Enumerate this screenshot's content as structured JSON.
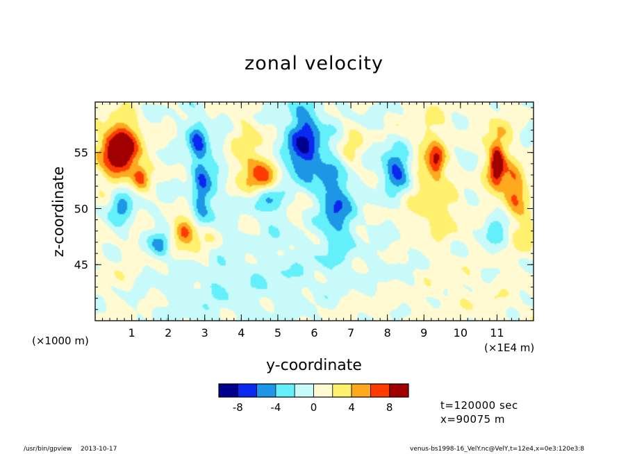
{
  "chart": {
    "title": "zonal velocity",
    "xlabel": "y-coordinate",
    "ylabel": "z-coordinate",
    "x_unit_left": "(×1000 m)",
    "x_unit_right": "(×1E4 m)"
  },
  "info": {
    "time": "t=120000 sec",
    "position": "x=90075 m"
  },
  "footer": {
    "program": "/usr/bin/gpview",
    "date": "2013-10-17",
    "source": "venus-bs1998-16_VelY.nc@VelY,t=12e4,x=0e3:120e3:8"
  },
  "colorbar": {
    "colors": [
      "#00008f",
      "#0a28f0",
      "#1e96e6",
      "#64f0fa",
      "#c8fafa",
      "#fffad2",
      "#fff06e",
      "#ffaa1e",
      "#ff3c00",
      "#a00000"
    ],
    "tick_labels": [
      "-8",
      "-4",
      "0",
      "4",
      "8"
    ],
    "tick_values": [
      -8,
      -4,
      0,
      4,
      8
    ],
    "levels": [
      -10,
      -8,
      -6,
      -4,
      -2,
      0,
      2,
      4,
      6,
      8,
      10
    ]
  },
  "chart_data": {
    "type": "heatmap",
    "title": "zonal velocity",
    "xlabel": "y-coordinate",
    "ylabel": "z-coordinate",
    "x_ticks": [
      1,
      2,
      3,
      4,
      5,
      6,
      7,
      8,
      9,
      10,
      11
    ],
    "x_tick_labels": [
      "1",
      "2",
      "3",
      "4",
      "5",
      "6",
      "7",
      "8",
      "9",
      "10",
      "11"
    ],
    "xlim": [
      0,
      12
    ],
    "y_ticks": [
      45,
      50,
      55
    ],
    "y_tick_labels": [
      "45",
      "50",
      "55"
    ],
    "ylim": [
      40,
      59.5
    ],
    "grid": false,
    "features": [
      {
        "x": 0.7,
        "z": 55.2,
        "value": 8,
        "sx": 0.35,
        "sz": 1.6
      },
      {
        "x": 0.65,
        "z": 54.8,
        "value": 4,
        "sx": 0.5,
        "sz": 2.5
      },
      {
        "x": 0.7,
        "z": 50.5,
        "value": -5,
        "sx": 0.25,
        "sz": 1.5
      },
      {
        "x": 1.25,
        "z": 52.8,
        "value": 5,
        "sx": 0.15,
        "sz": 0.7
      },
      {
        "x": 1.8,
        "z": 46.8,
        "value": -5,
        "sx": 0.2,
        "sz": 0.8
      },
      {
        "x": 2.45,
        "z": 48.0,
        "value": 6,
        "sx": 0.2,
        "sz": 0.7
      },
      {
        "x": 2.8,
        "z": 47.2,
        "value": 3,
        "sx": 0.45,
        "sz": 1.3
      },
      {
        "x": 2.8,
        "z": 56.0,
        "value": -6,
        "sx": 0.18,
        "sz": 1.5
      },
      {
        "x": 2.9,
        "z": 51.5,
        "value": -5,
        "sx": 0.18,
        "sz": 2.3
      },
      {
        "x": 3.35,
        "z": 51.0,
        "value": -2,
        "sx": 0.25,
        "sz": 3.5
      },
      {
        "x": 4.2,
        "z": 55.0,
        "value": 3,
        "sx": 0.35,
        "sz": 2.5
      },
      {
        "x": 4.6,
        "z": 52.8,
        "value": 6,
        "sx": 0.35,
        "sz": 1.2
      },
      {
        "x": 4.6,
        "z": 50.8,
        "value": -5,
        "sx": 0.25,
        "sz": 0.9
      },
      {
        "x": 5.1,
        "z": 51.5,
        "value": -2,
        "sx": 0.3,
        "sz": 3.5
      },
      {
        "x": 5.75,
        "z": 55.5,
        "value": -7,
        "sx": 0.3,
        "sz": 2.5
      },
      {
        "x": 5.75,
        "z": 53.5,
        "value": -2,
        "sx": 0.5,
        "sz": 4.0
      },
      {
        "x": 5.6,
        "z": 51.0,
        "value": 3,
        "sx": 0.4,
        "sz": 2.5
      },
      {
        "x": 6.6,
        "z": 50.5,
        "value": -6,
        "sx": 0.3,
        "sz": 2.8
      },
      {
        "x": 7.0,
        "z": 55.2,
        "value": 3,
        "sx": 0.25,
        "sz": 1.5
      },
      {
        "x": 8.25,
        "z": 53.5,
        "value": -7,
        "sx": 0.28,
        "sz": 1.4
      },
      {
        "x": 9.3,
        "z": 54.5,
        "value": 3,
        "sx": 0.55,
        "sz": 3.5
      },
      {
        "x": 9.35,
        "z": 54.2,
        "value": 6,
        "sx": 0.15,
        "sz": 1.0
      },
      {
        "x": 9.3,
        "z": 49.5,
        "value": 2,
        "sx": 0.5,
        "sz": 2.0
      },
      {
        "x": 10.0,
        "z": 54.5,
        "value": -2,
        "sx": 0.3,
        "sz": 2.0
      },
      {
        "x": 11.0,
        "z": 54.0,
        "value": 4,
        "sx": 0.35,
        "sz": 3.5
      },
      {
        "x": 11.0,
        "z": 54.0,
        "value": 7,
        "sx": 0.12,
        "sz": 1.2
      },
      {
        "x": 11.5,
        "z": 51.8,
        "value": 6,
        "sx": 0.2,
        "sz": 1.5
      },
      {
        "x": 10.95,
        "z": 48.5,
        "value": -4,
        "sx": 0.25,
        "sz": 1.5
      },
      {
        "x": 11.8,
        "z": 48.0,
        "value": 3,
        "sx": 0.25,
        "sz": 1.5
      },
      {
        "x": 6.0,
        "z": 44.0,
        "value": -1,
        "sx": 2.0,
        "sz": 2.5
      },
      {
        "x": 3.0,
        "z": 42.5,
        "value": -1,
        "sx": 1.5,
        "sz": 2.0
      },
      {
        "x": 10.5,
        "z": 42.0,
        "value": 1,
        "sx": 1.5,
        "sz": 3.0
      },
      {
        "x": 0.6,
        "z": 43.5,
        "value": 1,
        "sx": 0.8,
        "sz": 2.5
      },
      {
        "x": 7.5,
        "z": 41.5,
        "value": 1,
        "sx": 1.2,
        "sz": 1.5
      }
    ]
  }
}
